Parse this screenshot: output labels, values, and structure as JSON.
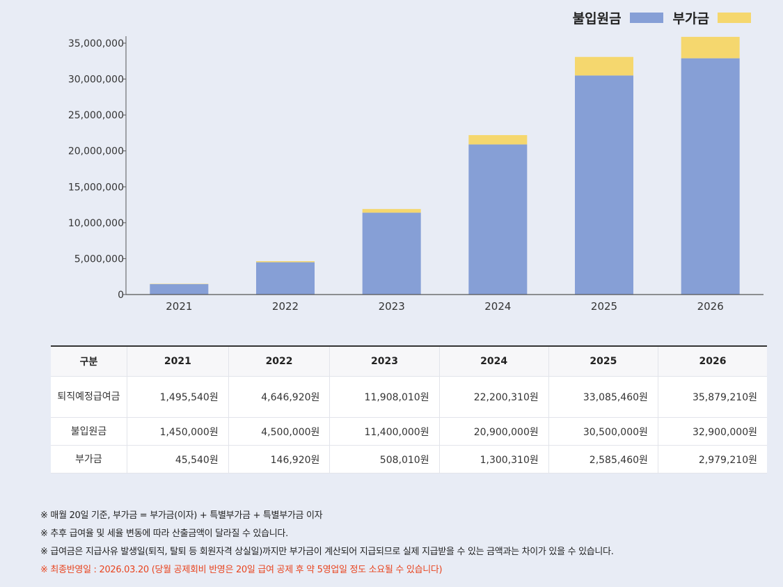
{
  "legend": [
    {
      "label": "불입원금",
      "color": "#869fd6"
    },
    {
      "label": "부가금",
      "color": "#f5d76e"
    }
  ],
  "chart_data": {
    "type": "bar",
    "stacked": true,
    "categories": [
      "2021",
      "2022",
      "2023",
      "2024",
      "2025",
      "2026"
    ],
    "series": [
      {
        "name": "불입원금",
        "values": [
          1450000,
          4500000,
          11400000,
          20900000,
          30500000,
          32900000
        ],
        "color": "#869fd6"
      },
      {
        "name": "부가금",
        "values": [
          45540,
          146920,
          508010,
          1300310,
          2585460,
          2979210
        ],
        "color": "#f5d76e"
      }
    ],
    "ylim": [
      0,
      35000000
    ],
    "yticks": [
      0,
      5000000,
      10000000,
      15000000,
      20000000,
      25000000,
      30000000,
      35000000
    ],
    "ytick_labels": [
      "0",
      "5,000,000",
      "10,000,000",
      "15,000,000",
      "20,000,000",
      "25,000,000",
      "30,000,000",
      "35,000,000"
    ],
    "legend_position": "top-right"
  },
  "table": {
    "headers": [
      "구분",
      "2021",
      "2022",
      "2023",
      "2024",
      "2025",
      "2026"
    ],
    "rows": [
      {
        "label": "퇴직예정급여금",
        "cells": [
          "1,495,540원",
          "4,646,920원",
          "11,908,010원",
          "22,200,310원",
          "33,085,460원",
          "35,879,210원"
        ]
      },
      {
        "label": "불입원금",
        "cells": [
          "1,450,000원",
          "4,500,000원",
          "11,400,000원",
          "20,900,000원",
          "30,500,000원",
          "32,900,000원"
        ]
      },
      {
        "label": "부가금",
        "cells": [
          "45,540원",
          "146,920원",
          "508,010원",
          "1,300,310원",
          "2,585,460원",
          "2,979,210원"
        ]
      }
    ]
  },
  "notes": [
    "※ 매월 20일 기준, 부가금 = 부가금(이자) + 특별부가금 + 특별부가금 이자",
    "※ 추후 급여율 및 세율 변동에 따라 산출금액이 달라질 수 있습니다.",
    "※ 급여금은 지급사유 발생일(퇴직, 탈퇴 등 회원자격 상실일)까지만 부가금이 계산되어 지급되므로 실제 지급받을 수 있는 금액과는 차이가 있을 수 있습니다.",
    "※ 최종반영일 : 2026.03.20 (당월 공제회비 반영은 20일 급여 공제 후 약 5영업일 정도 소요될 수 있습니다)"
  ]
}
